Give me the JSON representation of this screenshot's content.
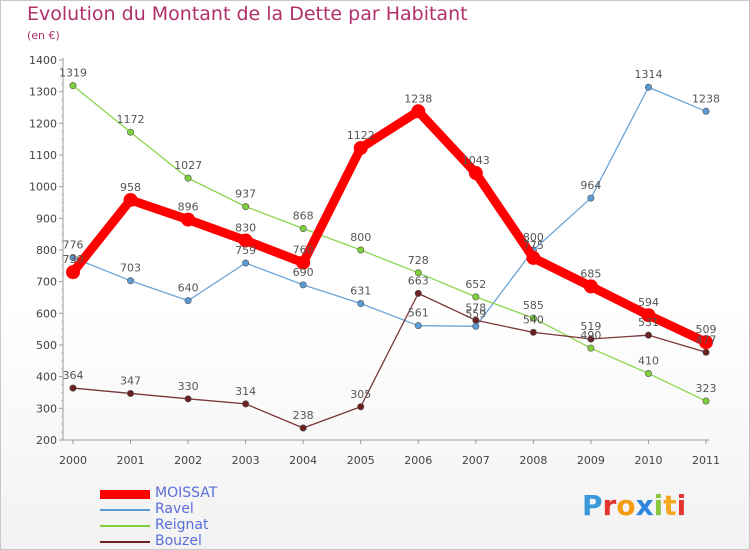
{
  "title": "Evolution du Montant de la Dette par Habitant",
  "subtitle": "(en €)",
  "logo": {
    "text": "Proxiti",
    "letters": [
      "P",
      "r",
      "o",
      "x",
      "i",
      "t",
      "i"
    ],
    "colors": [
      "#3b9ad9",
      "#e3342f",
      "#f39c12",
      "#2e86de",
      "#8cc63f",
      "#f5a623",
      "#e3342f"
    ]
  },
  "chart_data": {
    "type": "line",
    "title": "Evolution du Montant de la Dette par Habitant",
    "ylabel": "(en €)",
    "xlabel": "",
    "ylim": [
      200,
      1400
    ],
    "yticks": [
      200,
      300,
      400,
      500,
      600,
      700,
      800,
      900,
      1000,
      1100,
      1200,
      1300,
      1400
    ],
    "grid": false,
    "legend_position": "bottom-left",
    "categories": [
      "2000",
      "2001",
      "2002",
      "2003",
      "2004",
      "2005",
      "2006",
      "2007",
      "2008",
      "2009",
      "2010",
      "2011"
    ],
    "series": [
      {
        "name": "MOISSAT",
        "color": "#ff0000",
        "values": [
          730,
          958,
          896,
          830,
          760,
          1122,
          1238,
          1043,
          775,
          685,
          594,
          509
        ],
        "labels": [
          "730",
          "958",
          "896",
          "830",
          "760",
          "1122",
          "1238",
          "1043",
          "775",
          "685",
          "594",
          "509"
        ]
      },
      {
        "name": "Ravel",
        "color": "#5b9bd5",
        "values": [
          776,
          703,
          640,
          759,
          690,
          631,
          561,
          559,
          800,
          964,
          1314,
          1238
        ],
        "labels": [
          "776",
          "703",
          "640",
          "759",
          "690",
          "631",
          "561",
          "559",
          "800",
          "964",
          "1314",
          "1238"
        ]
      },
      {
        "name": "Reignat",
        "color": "#7fd13b",
        "values": [
          1319,
          1172,
          1027,
          937,
          868,
          800,
          728,
          652,
          585,
          490,
          410,
          323
        ],
        "labels": [
          "1319",
          "1172",
          "1027",
          "937",
          "868",
          "800",
          "728",
          "652",
          "585",
          "490",
          "410",
          "323"
        ]
      },
      {
        "name": "Bouzel",
        "color": "#6b2022",
        "values": [
          364,
          347,
          330,
          314,
          238,
          305,
          663,
          578,
          540,
          519,
          531,
          477
        ],
        "labels": [
          "364",
          "347",
          "330",
          "314",
          "238",
          "305",
          "663",
          "578",
          "540",
          "519",
          "531",
          "477"
        ]
      }
    ]
  }
}
